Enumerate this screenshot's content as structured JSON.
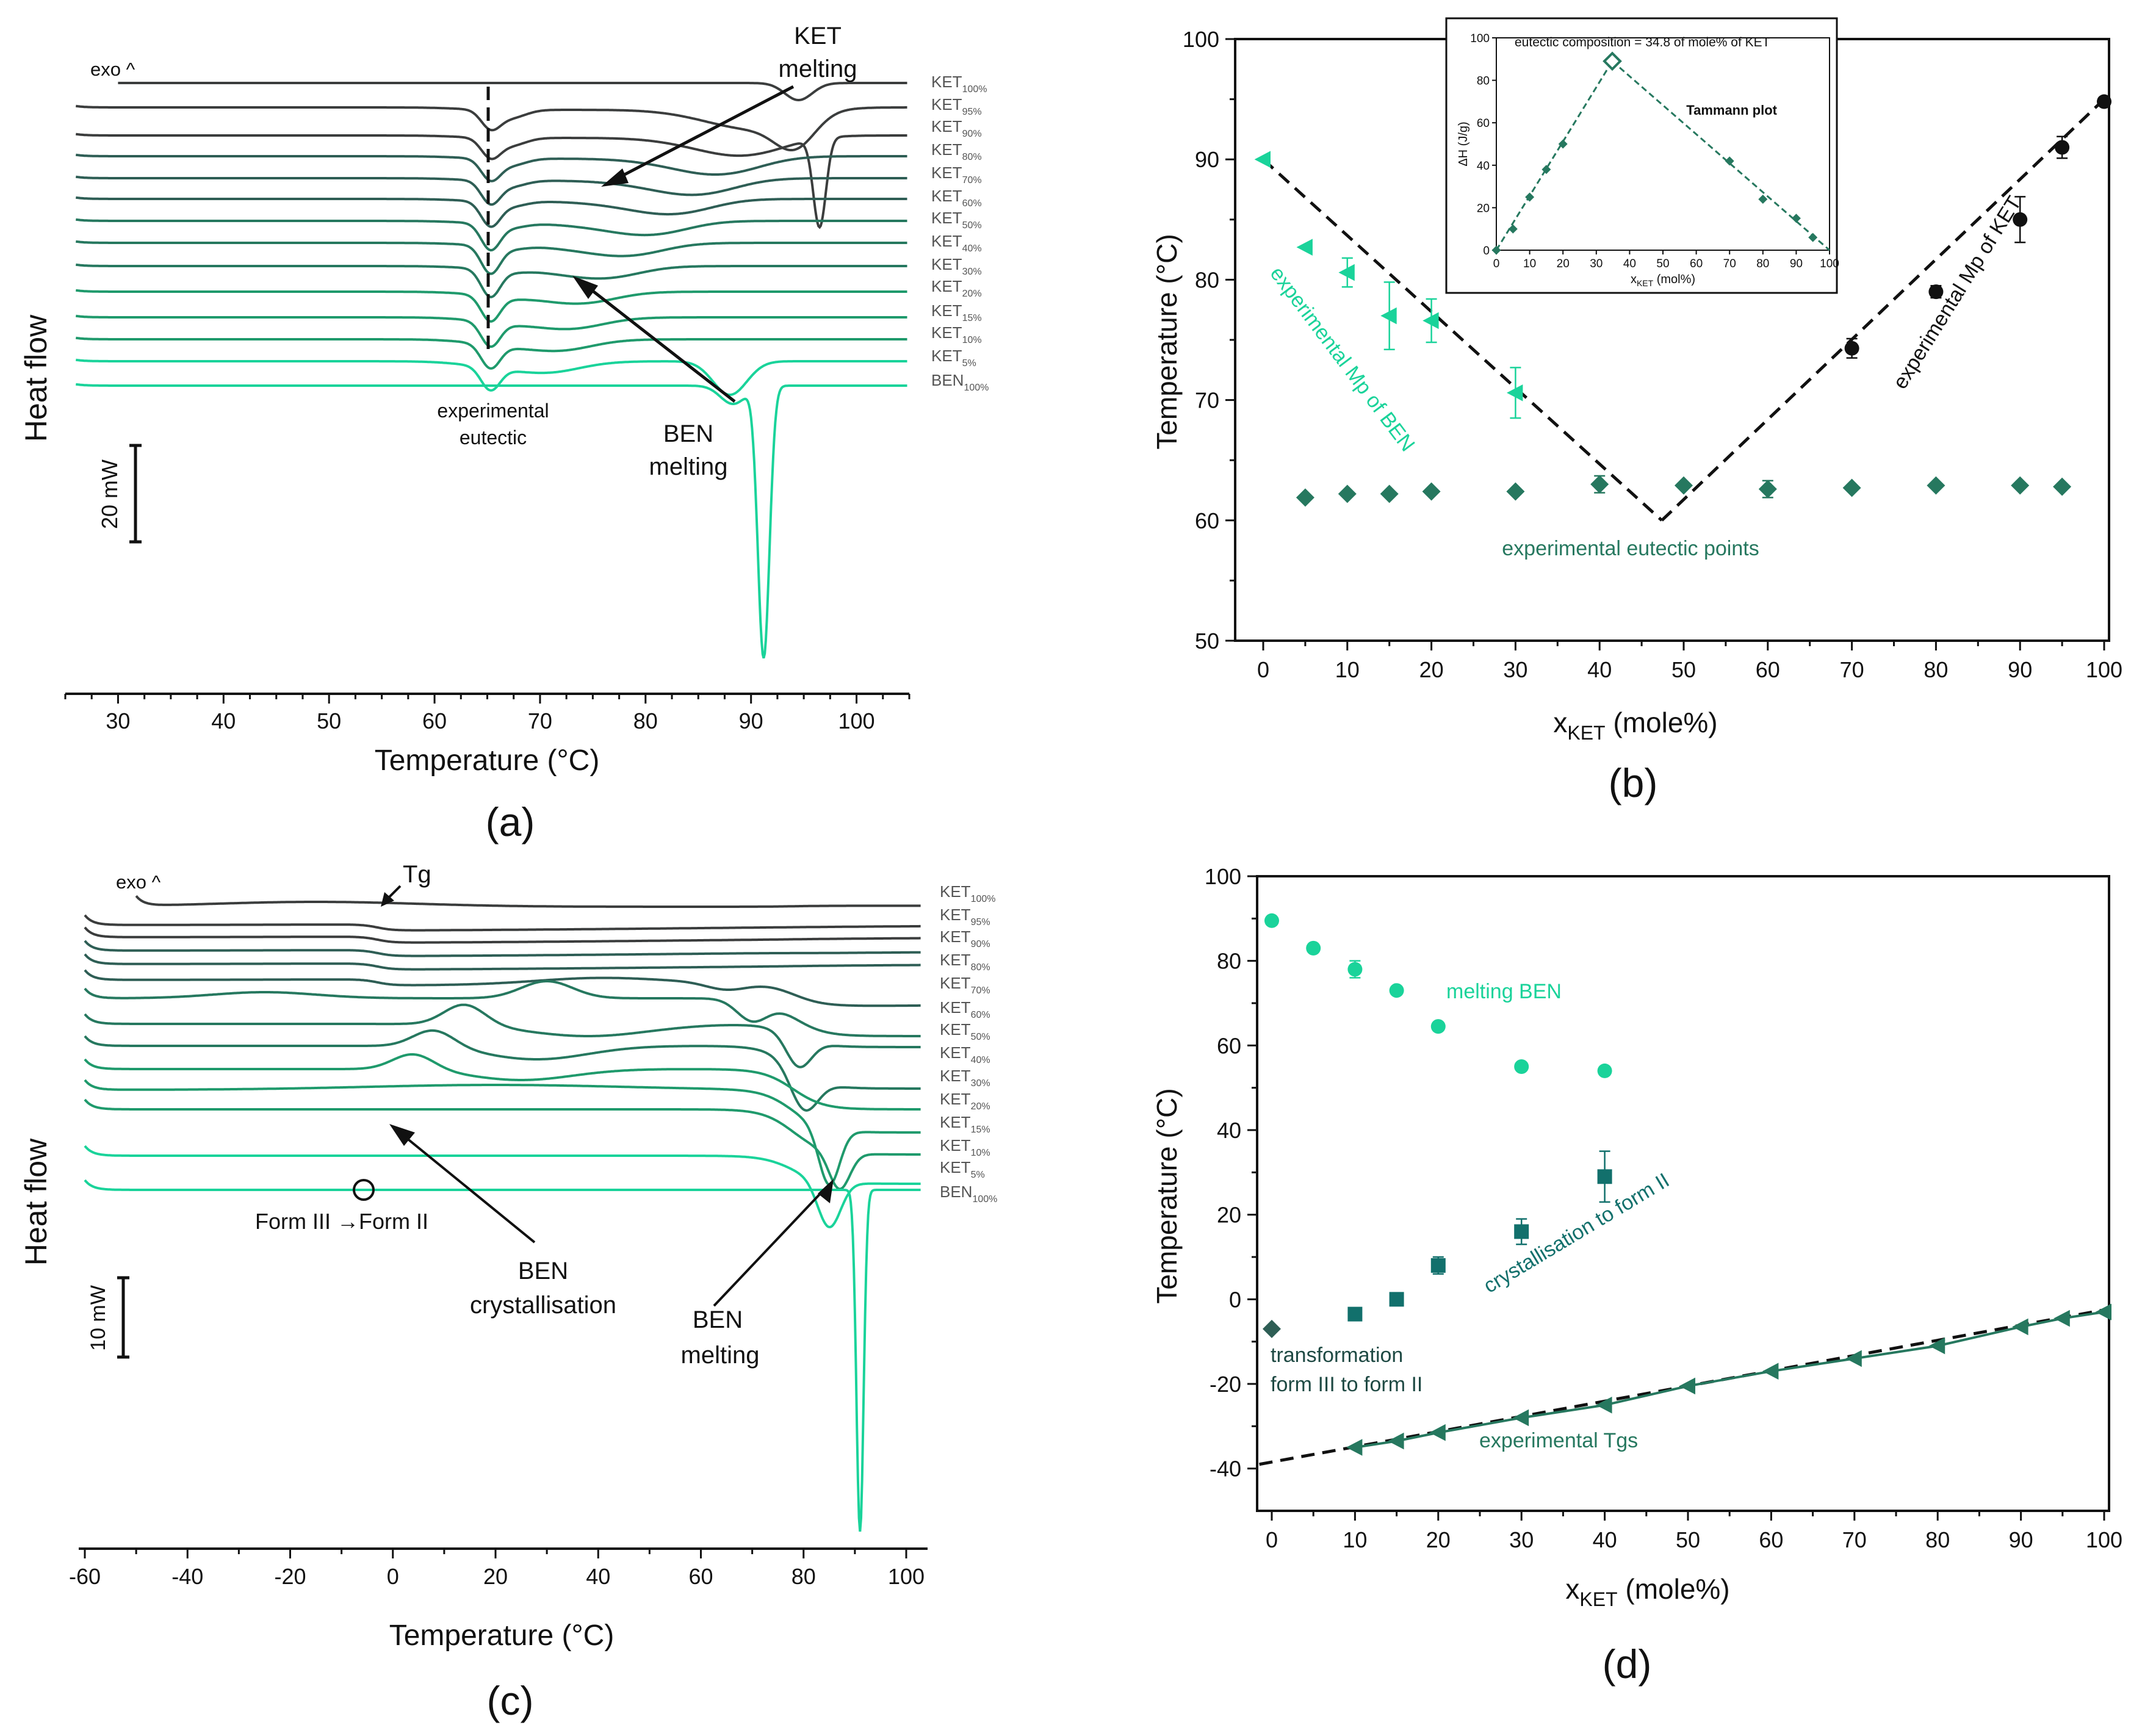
{
  "colors": {
    "dark": "#3b3d3d",
    "mid1": "#2e5e55",
    "mid2": "#26785f",
    "mid3": "#1f9a6c",
    "light": "#1ad39a",
    "teal": "#12706c",
    "black": "#111111"
  },
  "chart_data": [
    {
      "id": "a",
      "type": "line",
      "panel_label": "(a)",
      "xlabel": "Temperature (°C)",
      "ylabel": "Heat flow",
      "xlim": [
        25,
        105
      ],
      "xticks": [
        30,
        40,
        50,
        60,
        70,
        80,
        90,
        100
      ],
      "exo_label": "exo ^",
      "scale_bar_label": "20 mW",
      "series": [
        {
          "name": "KET",
          "sub": "100%",
          "color": "dark"
        },
        {
          "name": "KET",
          "sub": "95%",
          "color": "dark"
        },
        {
          "name": "KET",
          "sub": "90%",
          "color": "dark"
        },
        {
          "name": "KET",
          "sub": "80%",
          "color": "mid1"
        },
        {
          "name": "KET",
          "sub": "70%",
          "color": "mid1"
        },
        {
          "name": "KET",
          "sub": "60%",
          "color": "mid1"
        },
        {
          "name": "KET",
          "sub": "50%",
          "color": "mid2"
        },
        {
          "name": "KET",
          "sub": "40%",
          "color": "mid2"
        },
        {
          "name": "KET",
          "sub": "30%",
          "color": "mid2"
        },
        {
          "name": "KET",
          "sub": "20%",
          "color": "mid3"
        },
        {
          "name": "KET",
          "sub": "15%",
          "color": "mid3"
        },
        {
          "name": "KET",
          "sub": "10%",
          "color": "mid3"
        },
        {
          "name": "KET",
          "sub": "5%",
          "color": "light"
        },
        {
          "name": "BEN",
          "sub": "100%",
          "color": "light"
        }
      ],
      "annotations": {
        "ket_melting": "KET\nmelting",
        "ben_melting": "BEN\nmelting",
        "eutectic": "experimental\neutectic"
      }
    },
    {
      "id": "b",
      "type": "scatter",
      "panel_label": "(b)",
      "xlabel": "x",
      "xlabel_sub": "KET",
      "xlabel_tail": " (mole%)",
      "ylabel": "Temperature (°C)",
      "xlim": [
        -2,
        101
      ],
      "ylim": [
        50,
        100
      ],
      "xticks": [
        0,
        10,
        20,
        30,
        40,
        50,
        60,
        70,
        80,
        90,
        100
      ],
      "yticks": [
        50,
        60,
        70,
        80,
        90,
        100
      ],
      "series": [
        {
          "name": "experimental Mp of BEN",
          "marker": "triangle-left",
          "color": "light",
          "x": [
            0,
            5,
            10,
            15,
            20,
            30
          ],
          "y": [
            90.0,
            82.7,
            80.6,
            77.0,
            76.6,
            70.6
          ],
          "err": [
            0,
            0,
            1.2,
            2.8,
            1.8,
            2.1
          ]
        },
        {
          "name": "experimental Mp of KET",
          "marker": "circle",
          "color": "black",
          "x": [
            70,
            80,
            90,
            95,
            100
          ],
          "y": [
            74.3,
            79.0,
            85.0,
            91.0,
            94.8
          ],
          "err": [
            0.8,
            0.5,
            1.9,
            0.9,
            0
          ]
        },
        {
          "name": "experimental eutectic points",
          "marker": "diamond",
          "color": "mid2",
          "x": [
            5,
            10,
            15,
            20,
            30,
            40,
            50,
            60,
            70,
            80,
            90,
            95
          ],
          "y": [
            61.9,
            62.2,
            62.2,
            62.4,
            62.4,
            63.0,
            62.9,
            62.6,
            62.7,
            62.9,
            62.9,
            62.8
          ],
          "err": [
            0,
            0,
            0,
            0,
            0,
            0.7,
            0,
            0.7,
            0,
            0,
            0,
            0
          ]
        }
      ],
      "lines": [
        {
          "x": [
            0,
            47.4
          ],
          "y": [
            90,
            60
          ],
          "style": "dashed"
        },
        {
          "x": [
            47.4,
            100
          ],
          "y": [
            60,
            95
          ],
          "style": "dashed"
        }
      ],
      "inset": {
        "title": "eutectic composition = 34.8 of mole% of KET",
        "subtitle": "Tammann plot",
        "xlabel": "x",
        "xlabel_sub": "KET",
        "xlabel_tail": " (mol%)",
        "ylabel": "ΔH (J/g)",
        "xlim": [
          0,
          100
        ],
        "ylim": [
          0,
          100
        ],
        "xticks": [
          0,
          10,
          20,
          30,
          40,
          50,
          60,
          70,
          80,
          90,
          100
        ],
        "yticks": [
          0,
          20,
          40,
          60,
          80,
          100
        ],
        "x": [
          0,
          5,
          10,
          15,
          20,
          70,
          80,
          90,
          95
        ],
        "y": [
          0,
          10,
          25,
          38,
          50,
          42,
          24,
          15,
          6
        ],
        "eutectic_point": {
          "x": 34.8,
          "y": 89
        },
        "lines": [
          {
            "x": [
              0,
              34.8
            ],
            "y": [
              0,
              89
            ]
          },
          {
            "x": [
              34.8,
              100
            ],
            "y": [
              89,
              0
            ]
          }
        ]
      }
    },
    {
      "id": "c",
      "type": "line",
      "panel_label": "(c)",
      "xlabel": "Temperature (°C)",
      "ylabel": "Heat flow",
      "xlim": [
        -62,
        104
      ],
      "xticks": [
        -60,
        -40,
        -20,
        0,
        20,
        40,
        60,
        80,
        100
      ],
      "exo_label": "exo ^",
      "scale_bar_label": "10 mW",
      "series": [
        {
          "name": "KET",
          "sub": "100%",
          "color": "dark"
        },
        {
          "name": "KET",
          "sub": "95%",
          "color": "dark"
        },
        {
          "name": "KET",
          "sub": "90%",
          "color": "dark"
        },
        {
          "name": "KET",
          "sub": "80%",
          "color": "mid1"
        },
        {
          "name": "KET",
          "sub": "70%",
          "color": "mid1"
        },
        {
          "name": "KET",
          "sub": "60%",
          "color": "mid1"
        },
        {
          "name": "KET",
          "sub": "50%",
          "color": "mid2"
        },
        {
          "name": "KET",
          "sub": "40%",
          "color": "mid2"
        },
        {
          "name": "KET",
          "sub": "30%",
          "color": "mid2"
        },
        {
          "name": "KET",
          "sub": "20%",
          "color": "mid3"
        },
        {
          "name": "KET",
          "sub": "15%",
          "color": "mid3"
        },
        {
          "name": "KET",
          "sub": "10%",
          "color": "mid3"
        },
        {
          "name": "KET",
          "sub": "5%",
          "color": "light"
        },
        {
          "name": "BEN",
          "sub": "100%",
          "color": "light"
        }
      ],
      "annotations": {
        "tg": "Tg",
        "form": "Form III →Form II",
        "ben_cryst": "BEN\ncrystallisation",
        "ben_melting": "BEN\nmelting"
      }
    },
    {
      "id": "d",
      "type": "scatter",
      "panel_label": "(d)",
      "xlabel": "x",
      "xlabel_sub": "KET",
      "xlabel_tail": " (mole%)",
      "ylabel": "Temperature (°C)",
      "xlim": [
        -1.5,
        101
      ],
      "ylim": [
        -50,
        100
      ],
      "xticks": [
        0,
        10,
        20,
        30,
        40,
        50,
        60,
        70,
        80,
        90,
        100
      ],
      "yticks": [
        -40,
        -20,
        0,
        20,
        40,
        60,
        80,
        100
      ],
      "series": [
        {
          "name": "melting BEN",
          "marker": "circle",
          "color": "light",
          "x": [
            0,
            5,
            10,
            15,
            20,
            30,
            40
          ],
          "y": [
            89.5,
            83,
            78,
            73,
            64.5,
            55,
            54
          ],
          "err": [
            0,
            0,
            2,
            0,
            0,
            0,
            1
          ]
        },
        {
          "name": "crystallisation to form II",
          "marker": "square",
          "color": "teal",
          "x": [
            10,
            15,
            20,
            30,
            40
          ],
          "y": [
            -3.5,
            0,
            8,
            16,
            29
          ],
          "err": [
            0,
            0,
            2,
            3,
            6
          ]
        },
        {
          "name": "transformation\nform III to form II",
          "marker": "diamond",
          "color": "mid1",
          "x": [
            0
          ],
          "y": [
            -7
          ],
          "err": [
            0
          ]
        },
        {
          "name": "experimental Tgs",
          "marker": "triangle-left",
          "color": "mid2",
          "x": [
            10,
            15,
            20,
            30,
            40,
            50,
            60,
            70,
            80,
            90,
            95,
            100
          ],
          "y": [
            -35,
            -33.5,
            -31.5,
            -28,
            -25,
            -20.5,
            -17,
            -14,
            -11,
            -6.5,
            -4.5,
            -3
          ],
          "connected": true
        }
      ],
      "lines": [
        {
          "x": [
            -1.5,
            100
          ],
          "y": [
            -39,
            -2.5
          ],
          "style": "dashed"
        }
      ]
    }
  ]
}
